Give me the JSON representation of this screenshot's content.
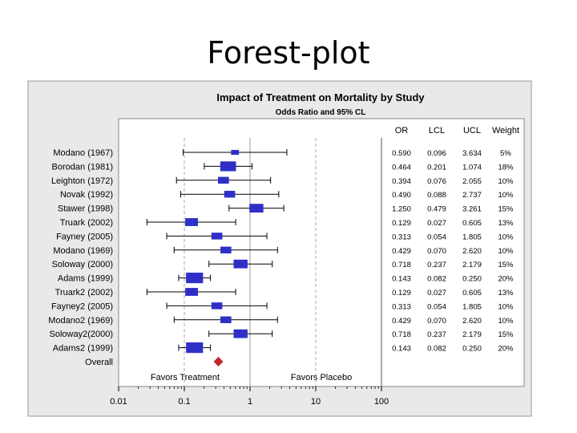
{
  "slide": {
    "title": "Forest-plot"
  },
  "chart_data": {
    "type": "forest",
    "title": "Impact of Treatment on Mortality by Study",
    "subtitle": "Odds Ratio and 95% CL",
    "column_headers": {
      "or": "OR",
      "lcl": "LCL",
      "ucl": "UCL",
      "weight": "Weight"
    },
    "x_scale": "log",
    "xlim": [
      0.01,
      100
    ],
    "x_ticks": [
      {
        "value": 0.01,
        "label": "0.01"
      },
      {
        "value": 0.1,
        "label": "0.1"
      },
      {
        "value": 1,
        "label": "1"
      },
      {
        "value": 10,
        "label": "10"
      },
      {
        "value": 100,
        "label": "100"
      }
    ],
    "reference_lines": [
      0.1,
      1,
      10
    ],
    "favors_left": "Favors Treatment",
    "favors_right": "Favors Placebo",
    "studies": [
      {
        "label": "Modano  (1967)",
        "or": "0.590",
        "lcl": "0.096",
        "ucl": "3.634",
        "weight": "5%"
      },
      {
        "label": "Borodan  (1981)",
        "or": "0.464",
        "lcl": "0.201",
        "ucl": "1.074",
        "weight": "18%"
      },
      {
        "label": "Leighton  (1972)",
        "or": "0.394",
        "lcl": "0.076",
        "ucl": "2.055",
        "weight": "10%"
      },
      {
        "label": "Novak  (1992)",
        "or": "0.490",
        "lcl": "0.088",
        "ucl": "2.737",
        "weight": "10%"
      },
      {
        "label": "Stawer  (1998)",
        "or": "1.250",
        "lcl": "0.479",
        "ucl": "3.261",
        "weight": "15%"
      },
      {
        "label": "Truark  (2002)",
        "or": "0.129",
        "lcl": "0.027",
        "ucl": "0.605",
        "weight": "13%"
      },
      {
        "label": "Fayney  (2005)",
        "or": "0.313",
        "lcl": "0.054",
        "ucl": "1.805",
        "weight": "10%"
      },
      {
        "label": "Modano  (1969)",
        "or": "0.429",
        "lcl": "0.070",
        "ucl": "2.620",
        "weight": "10%"
      },
      {
        "label": "Soloway  (2000)",
        "or": "0.718",
        "lcl": "0.237",
        "ucl": "2.179",
        "weight": "15%"
      },
      {
        "label": "Adams  (1999)",
        "or": "0.143",
        "lcl": "0.082",
        "ucl": "0.250",
        "weight": "20%"
      },
      {
        "label": "Truark2  (2002)",
        "or": "0.129",
        "lcl": "0.027",
        "ucl": "0.605",
        "weight": "13%"
      },
      {
        "label": "Fayney2  (2005)",
        "or": "0.313",
        "lcl": "0.054",
        "ucl": "1.805",
        "weight": "10%"
      },
      {
        "label": "Modano2  (1969)",
        "or": "0.429",
        "lcl": "0.070",
        "ucl": "2.620",
        "weight": "10%"
      },
      {
        "label": "Soloway2(2000)",
        "or": "0.718",
        "lcl": "0.237",
        "ucl": "2.179",
        "weight": "15%"
      },
      {
        "label": "Adams2  (1999)",
        "or": "0.143",
        "lcl": "0.082",
        "ucl": "0.250",
        "weight": "20%"
      }
    ],
    "overall": {
      "label": "Overall",
      "or": 0.33
    },
    "colors": {
      "box": "#2f2fc8",
      "overall": "#c0282d",
      "frame_bg": "#e9e9e9",
      "plot_bg": "#ffffff",
      "ref_line": "#aaaaaa"
    }
  }
}
